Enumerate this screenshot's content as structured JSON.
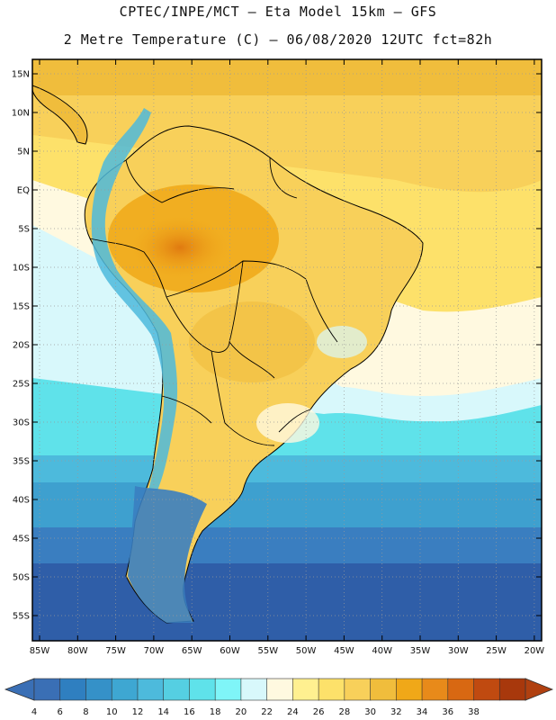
{
  "header": {
    "line1": "CPTEC/INPE/MCT –  Eta Model 15km – GFS",
    "line2": "2 Metre Temperature (C) – 06/08/2020 12UTC fct=82h"
  },
  "map": {
    "region": "South America",
    "lat_labels": [
      "15N",
      "10N",
      "5N",
      "EQ",
      "5S",
      "10S",
      "15S",
      "20S",
      "25S",
      "30S",
      "35S",
      "40S",
      "45S",
      "50S",
      "55S"
    ],
    "lon_labels": [
      "85W",
      "80W",
      "75W",
      "70W",
      "65W",
      "60W",
      "55W",
      "50W",
      "45W",
      "40W",
      "35W",
      "30W",
      "25W",
      "20W"
    ]
  },
  "colorbar": {
    "ticks": [
      "4",
      "6",
      "8",
      "10",
      "12",
      "14",
      "16",
      "18",
      "20",
      "22",
      "24",
      "26",
      "28",
      "30",
      "32",
      "34",
      "36",
      "38"
    ],
    "colors": [
      "#3a6fb5",
      "#2f7fc0",
      "#3591c8",
      "#3ea7d2",
      "#4dbadc",
      "#55cfe2",
      "#5fe2ea",
      "#7ff5f8",
      "#d8f8fb",
      "#fff9e0",
      "#fff090",
      "#fde16a",
      "#f8d05a",
      "#f0bd3c",
      "#f0a818",
      "#e88a1a",
      "#d86812",
      "#c04a10",
      "#a8380c"
    ],
    "min_color": "#3a6fb5",
    "max_color": "#b04010"
  }
}
